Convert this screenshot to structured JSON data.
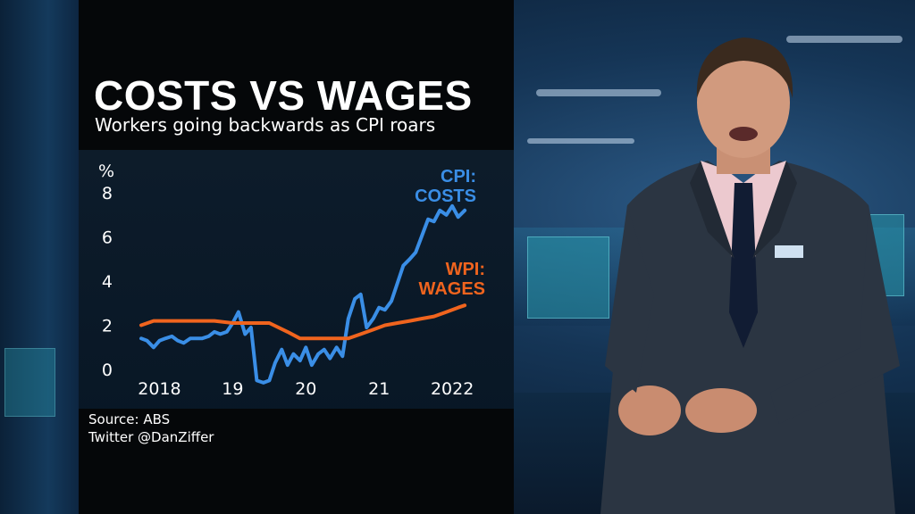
{
  "graphic": {
    "title": "COSTS VS WAGES",
    "subtitle": "Workers going backwards as CPI roars",
    "source": "Source: ABS",
    "twitter": "Twitter @DanZiffer"
  },
  "chart_data": {
    "type": "line",
    "title": "COSTS VS WAGES",
    "subtitle": "Workers going backwards as CPI roars",
    "ylabel": "%",
    "ylim": [
      0,
      8
    ],
    "yticks": [
      0,
      2,
      4,
      6,
      8
    ],
    "xlim": [
      2018.0,
      2022.7
    ],
    "xticks": [
      {
        "value": 2018.25,
        "label": "2018"
      },
      {
        "value": 2019.25,
        "label": "19"
      },
      {
        "value": 2020.25,
        "label": "20"
      },
      {
        "value": 2021.25,
        "label": "21"
      },
      {
        "value": 2022.25,
        "label": "2022"
      }
    ],
    "series": [
      {
        "name": "CPI: COSTS",
        "label_lines": [
          "CPI:",
          "COSTS"
        ],
        "color": "#3a8ee6",
        "points": [
          [
            2018.0,
            1.4
          ],
          [
            2018.08,
            1.3
          ],
          [
            2018.17,
            1.0
          ],
          [
            2018.25,
            1.3
          ],
          [
            2018.33,
            1.4
          ],
          [
            2018.42,
            1.5
          ],
          [
            2018.5,
            1.3
          ],
          [
            2018.58,
            1.2
          ],
          [
            2018.67,
            1.4
          ],
          [
            2018.75,
            1.4
          ],
          [
            2018.83,
            1.4
          ],
          [
            2018.92,
            1.5
          ],
          [
            2019.0,
            1.7
          ],
          [
            2019.08,
            1.6
          ],
          [
            2019.17,
            1.7
          ],
          [
            2019.25,
            2.1
          ],
          [
            2019.33,
            2.6
          ],
          [
            2019.42,
            1.6
          ],
          [
            2019.5,
            1.9
          ],
          [
            2019.58,
            -0.5
          ],
          [
            2019.67,
            -0.6
          ],
          [
            2019.75,
            -0.5
          ],
          [
            2019.83,
            0.3
          ],
          [
            2019.92,
            0.9
          ],
          [
            2020.0,
            0.2
          ],
          [
            2020.08,
            0.7
          ],
          [
            2020.17,
            0.4
          ],
          [
            2020.25,
            1.0
          ],
          [
            2020.33,
            0.2
          ],
          [
            2020.42,
            0.7
          ],
          [
            2020.5,
            0.9
          ],
          [
            2020.58,
            0.5
          ],
          [
            2020.67,
            1.0
          ],
          [
            2020.75,
            0.6
          ],
          [
            2020.83,
            2.3
          ],
          [
            2020.92,
            3.2
          ],
          [
            2021.0,
            3.4
          ],
          [
            2021.08,
            1.9
          ],
          [
            2021.17,
            2.3
          ],
          [
            2021.25,
            2.8
          ],
          [
            2021.33,
            2.7
          ],
          [
            2021.42,
            3.1
          ],
          [
            2021.5,
            3.9
          ],
          [
            2021.58,
            4.7
          ],
          [
            2021.67,
            5.0
          ],
          [
            2021.75,
            5.3
          ],
          [
            2021.83,
            6.0
          ],
          [
            2021.92,
            6.8
          ],
          [
            2022.0,
            6.7
          ],
          [
            2022.08,
            7.2
          ],
          [
            2022.17,
            7.0
          ],
          [
            2022.25,
            7.4
          ],
          [
            2022.33,
            6.9
          ],
          [
            2022.42,
            7.2
          ]
        ]
      },
      {
        "name": "WPI: WAGES",
        "label_lines": [
          "WPI:",
          "WAGES"
        ],
        "color": "#f0641e",
        "points": [
          [
            2018.0,
            2.0
          ],
          [
            2018.17,
            2.2
          ],
          [
            2018.5,
            2.2
          ],
          [
            2018.75,
            2.2
          ],
          [
            2019.0,
            2.2
          ],
          [
            2019.25,
            2.1
          ],
          [
            2019.5,
            2.1
          ],
          [
            2019.75,
            2.1
          ],
          [
            2020.0,
            1.7
          ],
          [
            2020.17,
            1.4
          ],
          [
            2020.33,
            1.4
          ],
          [
            2020.5,
            1.4
          ],
          [
            2020.67,
            1.4
          ],
          [
            2020.83,
            1.4
          ],
          [
            2021.0,
            1.6
          ],
          [
            2021.17,
            1.8
          ],
          [
            2021.33,
            2.0
          ],
          [
            2021.5,
            2.1
          ],
          [
            2021.67,
            2.2
          ],
          [
            2021.83,
            2.3
          ],
          [
            2022.0,
            2.4
          ],
          [
            2022.17,
            2.6
          ],
          [
            2022.33,
            2.8
          ],
          [
            2022.42,
            2.9
          ]
        ]
      }
    ],
    "grid": false,
    "legend": "inline labels at line ends"
  },
  "colors": {
    "panel_bg": "#050709",
    "text": "#ffffff",
    "cpi": "#3a8ee6",
    "wpi": "#f0641e"
  }
}
